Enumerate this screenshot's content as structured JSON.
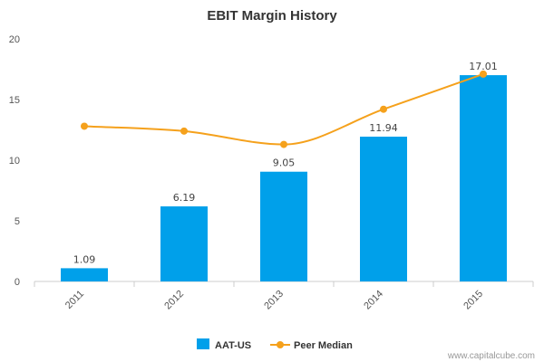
{
  "chart_data": {
    "type": "bar",
    "title": "EBIT Margin History",
    "categories": [
      "2011",
      "2012",
      "2013",
      "2014",
      "2015"
    ],
    "ylim": [
      0,
      20
    ],
    "yticks": [
      0,
      5,
      10,
      15,
      20
    ],
    "grid": false,
    "legend_position": "bottom",
    "series": [
      {
        "name": "AAT-US",
        "type": "bar",
        "color": "#00a0ea",
        "values": [
          1.09,
          6.19,
          9.05,
          11.94,
          17.01
        ],
        "labels": [
          "1.09",
          "6.19",
          "9.05",
          "11.94",
          "17.01"
        ]
      },
      {
        "name": "Peer Median",
        "type": "line",
        "color": "#f5a11c",
        "values": [
          12.8,
          12.4,
          11.3,
          14.2,
          17.1
        ]
      }
    ]
  },
  "credit": "www.capitalcube.com"
}
